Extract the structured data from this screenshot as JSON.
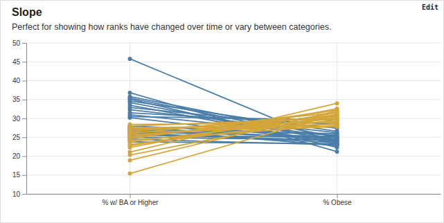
{
  "toolbar": {
    "button": "Edit"
  },
  "chart_data": {
    "type": "slope",
    "title": "Slope",
    "subtitle": "Perfect for showing how ranks have changed over time or vary between categories.",
    "categories": [
      "% w/ BA or Higher",
      "% Obese"
    ],
    "ylim": [
      10,
      50
    ],
    "yticks": [
      10,
      15,
      20,
      25,
      30,
      35,
      40,
      45,
      50
    ],
    "grid": true,
    "marker": "circle",
    "series": [
      {
        "color": "#4a7ea8",
        "values": [
          45.8,
          23.0
        ]
      },
      {
        "color": "#4a7ea8",
        "values": [
          36.8,
          21.2
        ]
      },
      {
        "color": "#4a7ea8",
        "values": [
          35.8,
          25.0
        ]
      },
      {
        "color": "#4a7ea8",
        "values": [
          35.4,
          24.3
        ]
      },
      {
        "color": "#4a7ea8",
        "values": [
          35.1,
          22.3
        ]
      },
      {
        "color": "#4a7ea8",
        "values": [
          34.6,
          26.6
        ]
      },
      {
        "color": "#4a7ea8",
        "values": [
          34.2,
          24.0
        ]
      },
      {
        "color": "#4a7ea8",
        "values": [
          33.5,
          23.3
        ]
      },
      {
        "color": "#4a7ea8",
        "values": [
          32.9,
          27.4
        ]
      },
      {
        "color": "#4a7ea8",
        "values": [
          32.3,
          26.2
        ]
      },
      {
        "color": "#4a7ea8",
        "values": [
          31.5,
          28.4
        ]
      },
      {
        "color": "#4a7ea8",
        "values": [
          31.0,
          25.4
        ]
      },
      {
        "color": "#4a7ea8",
        "values": [
          30.5,
          29.6
        ]
      },
      {
        "color": "#4a7ea8",
        "values": [
          30.2,
          23.8
        ]
      },
      {
        "color": "#4a7ea8",
        "values": [
          28.0,
          25.6
        ]
      },
      {
        "color": "#4a7ea8",
        "values": [
          27.6,
          24.5
        ]
      },
      {
        "color": "#4a7ea8",
        "values": [
          27.3,
          22.8
        ]
      },
      {
        "color": "#4a7ea8",
        "values": [
          27.0,
          26.0
        ]
      },
      {
        "color": "#4a7ea8",
        "values": [
          26.8,
          24.9
        ]
      },
      {
        "color": "#4a7ea8",
        "values": [
          26.4,
          25.2
        ]
      },
      {
        "color": "#4a7ea8",
        "values": [
          26.2,
          23.6
        ]
      },
      {
        "color": "#4a7ea8",
        "values": [
          25.9,
          24.1
        ]
      },
      {
        "color": "#4a7ea8",
        "values": [
          25.5,
          25.0
        ]
      },
      {
        "color": "#4a7ea8",
        "values": [
          25.0,
          24.4
        ]
      },
      {
        "color": "#4a7ea8",
        "values": [
          24.5,
          23.0
        ]
      },
      {
        "color": "#4a7ea8",
        "values": [
          23.8,
          23.3
        ]
      },
      {
        "color": "#d4a63a",
        "values": [
          15.4,
          31.2
        ]
      },
      {
        "color": "#d4a63a",
        "values": [
          18.9,
          32.0
        ]
      },
      {
        "color": "#d4a63a",
        "values": [
          20.3,
          30.9
        ]
      },
      {
        "color": "#d4a63a",
        "values": [
          21.1,
          34.0
        ]
      },
      {
        "color": "#d4a63a",
        "values": [
          22.3,
          32.6
        ]
      },
      {
        "color": "#d4a63a",
        "values": [
          22.8,
          31.5
        ]
      },
      {
        "color": "#d4a63a",
        "values": [
          23.1,
          29.6
        ]
      },
      {
        "color": "#d4a63a",
        "values": [
          23.8,
          30.4
        ]
      },
      {
        "color": "#d4a63a",
        "values": [
          24.2,
          28.1
        ]
      },
      {
        "color": "#d4a63a",
        "values": [
          24.6,
          32.2
        ]
      },
      {
        "color": "#d4a63a",
        "values": [
          24.9,
          31.0
        ]
      },
      {
        "color": "#d4a63a",
        "values": [
          25.3,
          29.9
        ]
      },
      {
        "color": "#d4a63a",
        "values": [
          25.7,
          28.6
        ]
      },
      {
        "color": "#d4a63a",
        "values": [
          26.0,
          31.6
        ]
      },
      {
        "color": "#d4a63a",
        "values": [
          26.3,
          27.8
        ]
      },
      {
        "color": "#d4a63a",
        "values": [
          26.6,
          30.6
        ]
      },
      {
        "color": "#d4a63a",
        "values": [
          27.0,
          29.2
        ]
      },
      {
        "color": "#d4a63a",
        "values": [
          27.3,
          28.4
        ]
      },
      {
        "color": "#d4a63a",
        "values": [
          27.6,
          27.9
        ]
      },
      {
        "color": "#d4a63a",
        "values": [
          28.0,
          30.0
        ]
      },
      {
        "color": "#d4a63a",
        "values": [
          28.4,
          28.9
        ]
      }
    ]
  }
}
